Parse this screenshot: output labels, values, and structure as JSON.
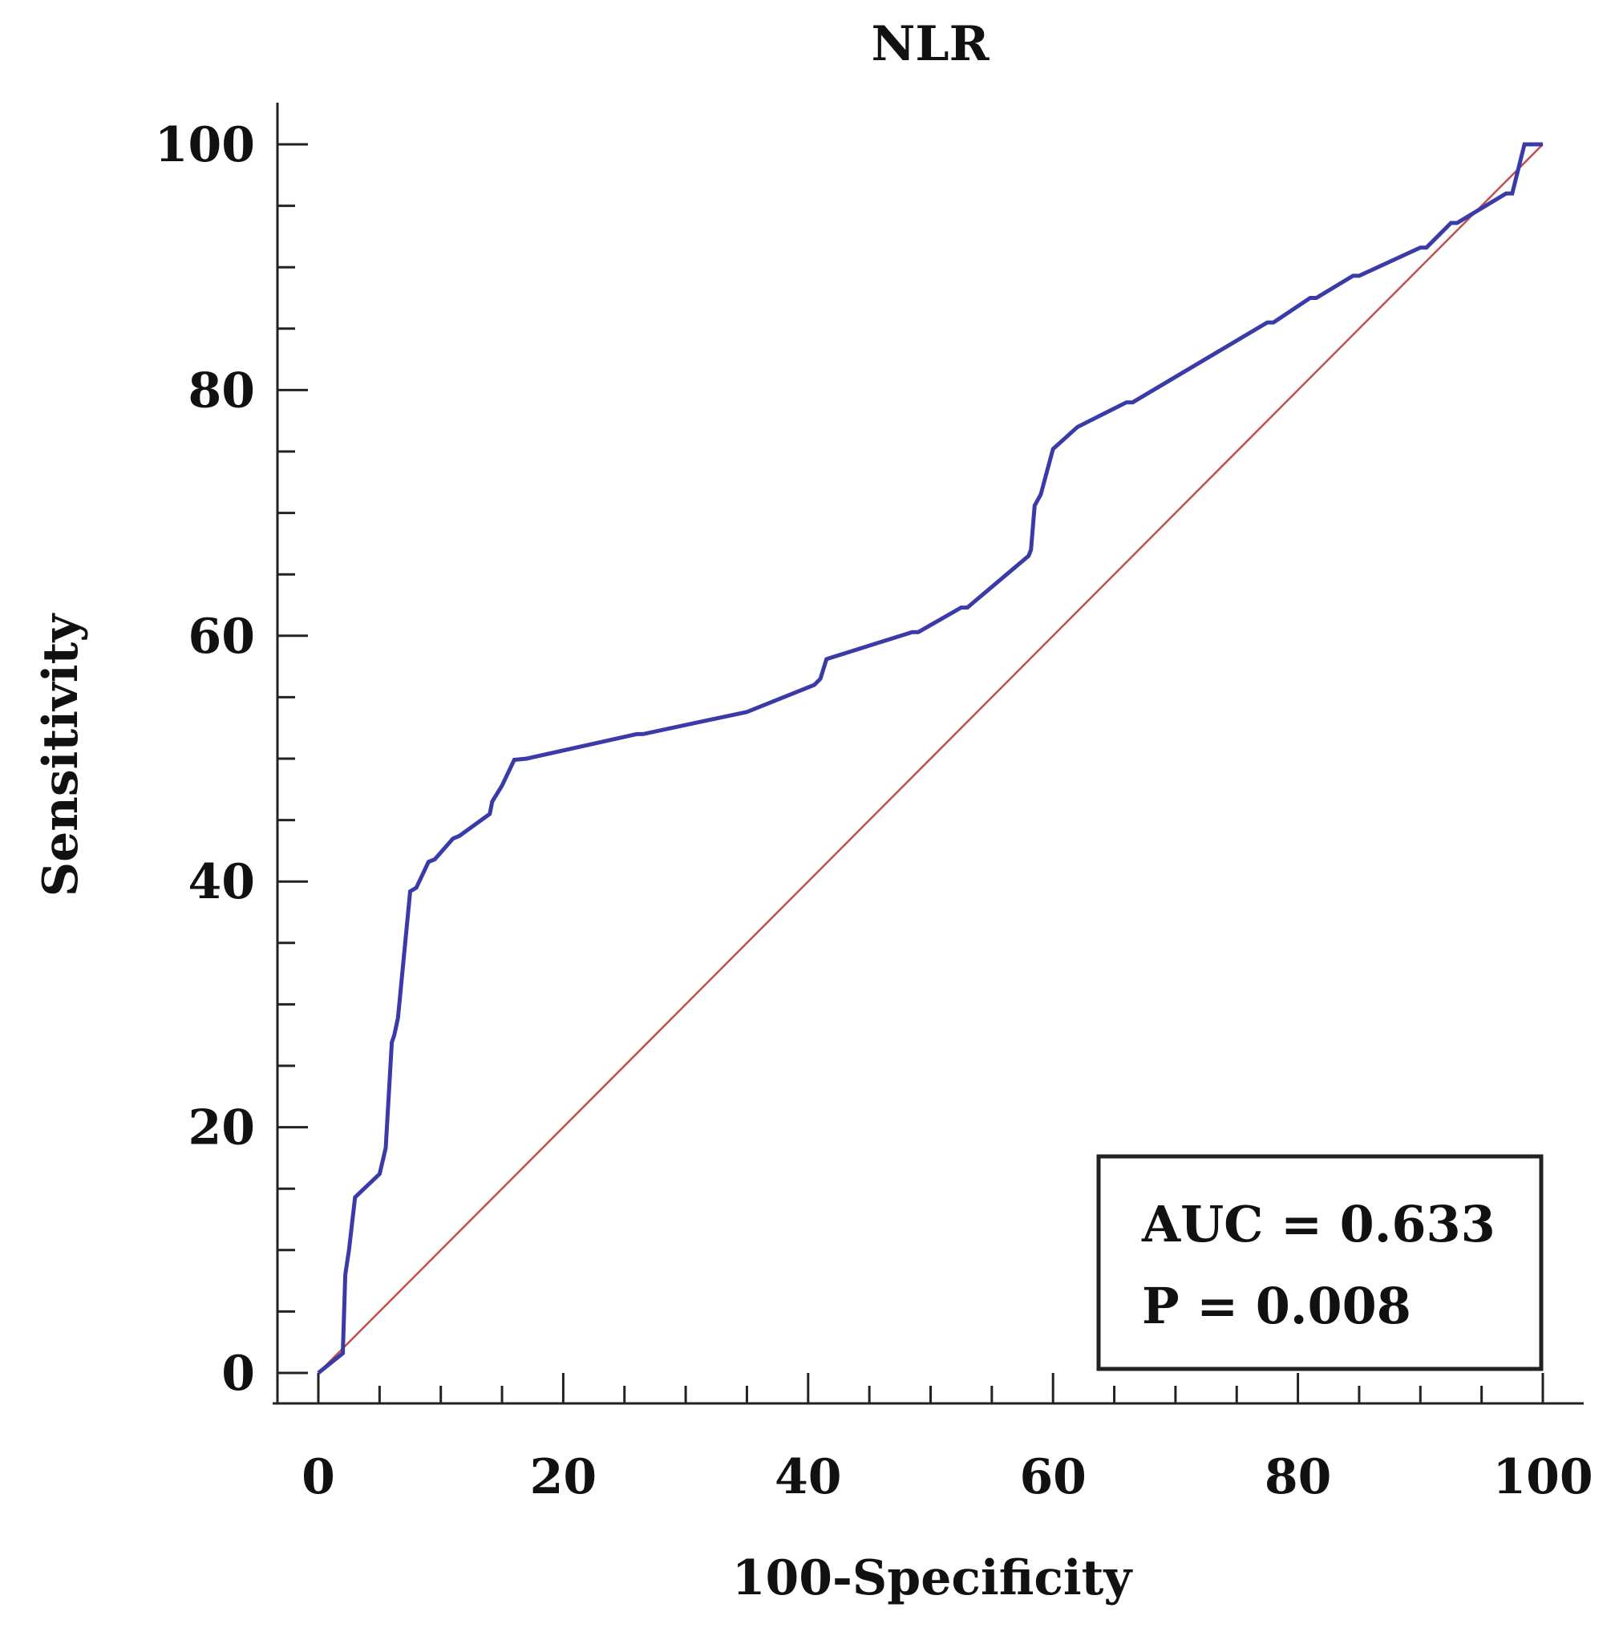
{
  "chart_data": {
    "type": "line",
    "title": "NLR",
    "xlabel": "100-Specificity",
    "ylabel": "Sensitivity",
    "xlim": [
      0,
      100
    ],
    "ylim": [
      0,
      100
    ],
    "x_ticks": [
      0,
      20,
      40,
      60,
      80,
      100
    ],
    "y_ticks": [
      0,
      20,
      40,
      60,
      80,
      100
    ],
    "x_tick_labels": [
      "0",
      "20",
      "40",
      "60",
      "80",
      "100"
    ],
    "y_tick_labels": [
      "0",
      "20",
      "40",
      "60",
      "80",
      "100"
    ],
    "minor_tick_step": 5,
    "grid": false,
    "series": [
      {
        "name": "ROC curve",
        "color": "#3a3aa8",
        "step": true,
        "x": [
          0,
          2,
          2.2,
          2.5,
          3,
          5,
          5.5,
          6,
          6.2,
          6.5,
          7.5,
          8,
          9,
          9.5,
          11,
          11.5,
          14,
          14.2,
          15,
          16,
          17,
          26,
          26.5,
          35,
          35.5,
          40.5,
          41,
          41.5,
          48.5,
          49,
          52.5,
          53,
          58,
          58.2,
          58.5,
          59,
          60,
          62,
          66,
          66.5,
          77.5,
          78,
          81,
          81.5,
          84.5,
          85,
          90,
          90.5,
          92.5,
          93,
          97,
          97.5,
          98.5,
          99,
          100
        ],
        "y": [
          0,
          1.6,
          8,
          10,
          14.3,
          16.2,
          18.3,
          26.9,
          27.5,
          28.9,
          39.2,
          39.5,
          41.6,
          41.8,
          43.5,
          43.7,
          45.5,
          46.5,
          47.8,
          49.9,
          50,
          52,
          52,
          53.8,
          54,
          56,
          56.5,
          58.1,
          60.3,
          60.3,
          62.3,
          62.3,
          66.5,
          67,
          70.6,
          71.5,
          75.2,
          77,
          79,
          79,
          85.5,
          85.5,
          87.5,
          87.5,
          89.3,
          89.3,
          91.6,
          91.6,
          93.6,
          93.6,
          96,
          96,
          100,
          100,
          100
        ]
      },
      {
        "name": "Reference line",
        "color": "#c05050",
        "x": [
          0,
          100
        ],
        "y": [
          0,
          100
        ]
      }
    ],
    "annotations": [
      {
        "text": "AUC = 0.633"
      },
      {
        "text": "P = 0.008"
      }
    ]
  }
}
